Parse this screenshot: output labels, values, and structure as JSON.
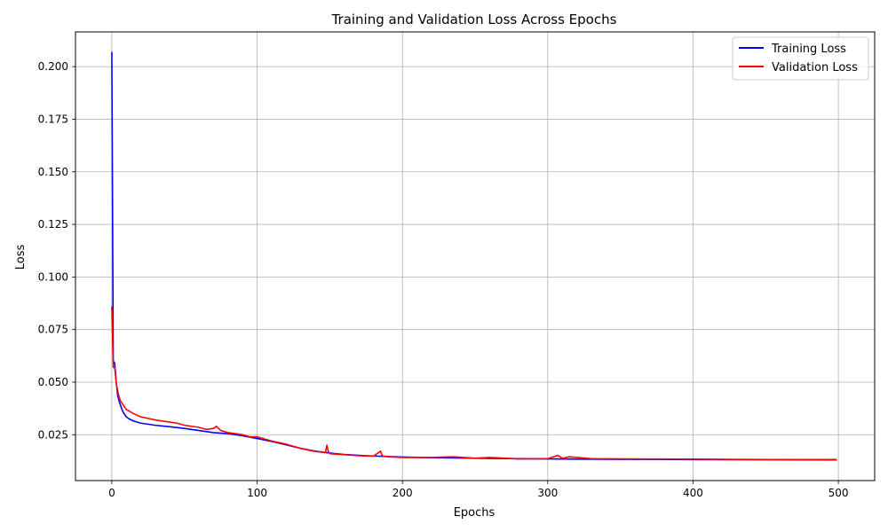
{
  "chart_data": {
    "type": "line",
    "title": "Training and Validation Loss Across Epochs",
    "xlabel": "Epochs",
    "ylabel": "Loss",
    "xlim": [
      -25,
      525
    ],
    "ylim": [
      0.0032,
      0.2165
    ],
    "xticks": [
      0,
      100,
      200,
      300,
      400,
      500
    ],
    "yticks": [
      0.025,
      0.05,
      0.075,
      0.1,
      0.125,
      0.15,
      0.175,
      0.2
    ],
    "ytick_labels": [
      "0.025",
      "0.050",
      "0.075",
      "0.100",
      "0.125",
      "0.150",
      "0.175",
      "0.200"
    ],
    "grid": true,
    "legend": "top-right",
    "series": [
      {
        "name": "Training Loss",
        "color": "#0000ff",
        "x": [
          0,
          1,
          2,
          3,
          4,
          5,
          6,
          7,
          8,
          10,
          12,
          15,
          20,
          30,
          40,
          50,
          60,
          70,
          80,
          90,
          100,
          110,
          120,
          130,
          140,
          150,
          160,
          170,
          180,
          190,
          200,
          220,
          250,
          280,
          300,
          320,
          350,
          400,
          450,
          499
        ],
        "y": [
          0.207,
          0.06,
          0.059,
          0.05,
          0.044,
          0.041,
          0.039,
          0.037,
          0.0355,
          0.0335,
          0.0325,
          0.0315,
          0.0305,
          0.0295,
          0.0288,
          0.028,
          0.027,
          0.026,
          0.0255,
          0.0245,
          0.0232,
          0.0218,
          0.0202,
          0.0185,
          0.0172,
          0.0163,
          0.0156,
          0.0152,
          0.0149,
          0.0146,
          0.0144,
          0.0141,
          0.0138,
          0.0136,
          0.0135,
          0.0134,
          0.0133,
          0.0132,
          0.0131,
          0.013
        ]
      },
      {
        "name": "Validation Loss",
        "color": "#ff0000",
        "x": [
          0,
          1,
          2,
          3,
          4,
          5,
          6,
          8,
          10,
          15,
          20,
          30,
          40,
          45,
          50,
          60,
          65,
          70,
          72,
          75,
          80,
          85,
          90,
          95,
          100,
          105,
          110,
          120,
          130,
          140,
          147,
          148,
          149,
          150,
          160,
          170,
          180,
          185,
          186,
          190,
          200,
          220,
          235,
          250,
          260,
          280,
          300,
          307,
          310,
          315,
          330,
          350,
          400,
          450,
          499
        ],
        "y": [
          0.086,
          0.057,
          0.057,
          0.05,
          0.046,
          0.043,
          0.041,
          0.039,
          0.037,
          0.035,
          0.0335,
          0.032,
          0.031,
          0.0305,
          0.0295,
          0.0285,
          0.0275,
          0.028,
          0.029,
          0.027,
          0.026,
          0.0255,
          0.025,
          0.024,
          0.024,
          0.023,
          0.022,
          0.0205,
          0.0185,
          0.017,
          0.0165,
          0.02,
          0.017,
          0.016,
          0.0155,
          0.015,
          0.0148,
          0.0172,
          0.015,
          0.0145,
          0.0142,
          0.0142,
          0.0145,
          0.0138,
          0.0142,
          0.0135,
          0.0136,
          0.0152,
          0.0138,
          0.0145,
          0.0136,
          0.0135,
          0.0134,
          0.0132,
          0.0132
        ]
      }
    ]
  }
}
